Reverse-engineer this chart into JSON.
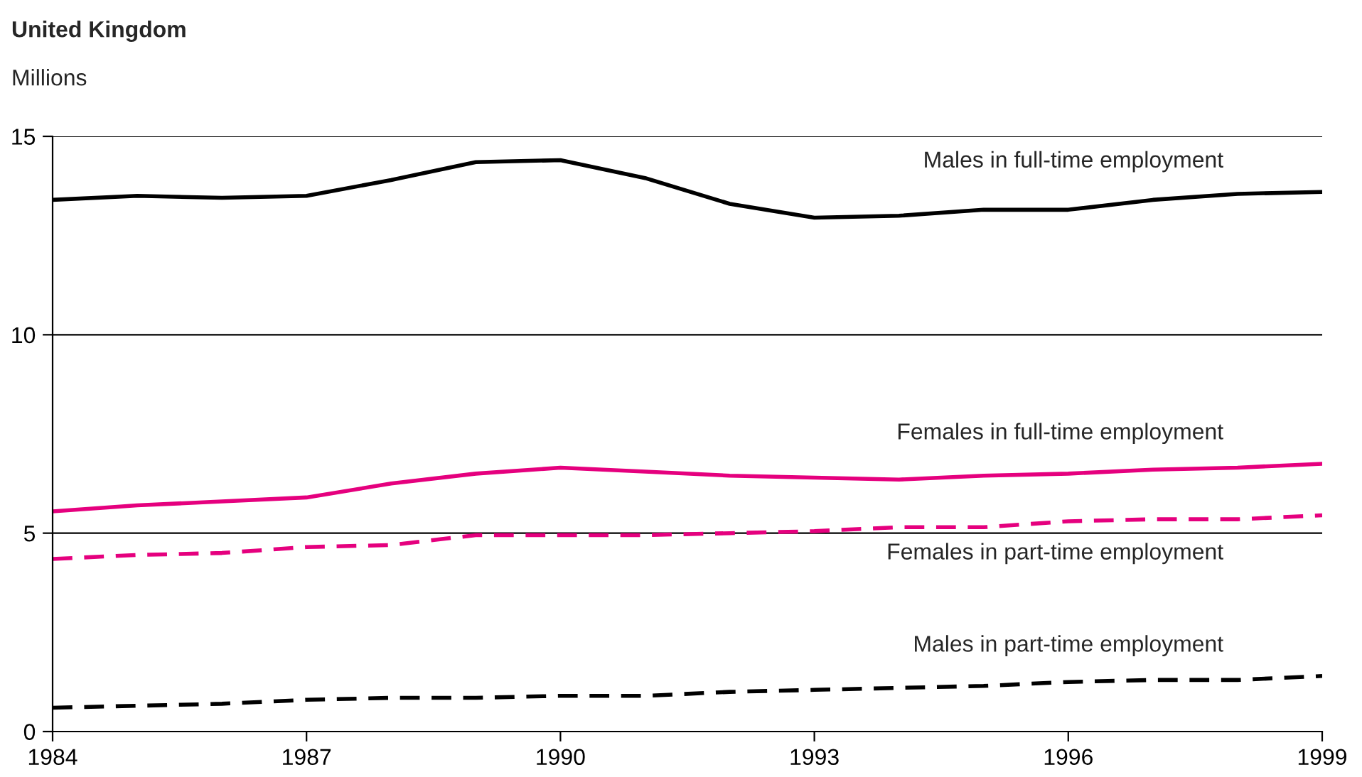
{
  "chart_data": {
    "type": "line",
    "title": "United Kingdom",
    "ylabel": "Millions",
    "x": [
      1984,
      1985,
      1986,
      1987,
      1988,
      1989,
      1990,
      1991,
      1992,
      1993,
      1994,
      1995,
      1996,
      1997,
      1998,
      1999
    ],
    "series": [
      {
        "name": "Males in full-time employment",
        "color": "#000000",
        "line_style": "solid",
        "values": [
          13.4,
          13.5,
          13.45,
          13.5,
          13.9,
          14.35,
          14.4,
          13.95,
          13.3,
          12.95,
          13.0,
          13.15,
          13.15,
          13.4,
          13.55,
          13.6
        ]
      },
      {
        "name": "Females in full-time employment",
        "color": "#e5007e",
        "line_style": "solid",
        "values": [
          5.55,
          5.7,
          5.8,
          5.9,
          6.25,
          6.5,
          6.65,
          6.55,
          6.45,
          6.4,
          6.35,
          6.45,
          6.5,
          6.6,
          6.65,
          6.75
        ]
      },
      {
        "name": "Females in part-time employment",
        "color": "#e5007e",
        "line_style": "dashed",
        "values": [
          4.35,
          4.45,
          4.5,
          4.65,
          4.7,
          4.95,
          4.95,
          4.95,
          5.0,
          5.05,
          5.15,
          5.15,
          5.3,
          5.35,
          5.35,
          5.45
        ]
      },
      {
        "name": "Males in part-time employment",
        "color": "#000000",
        "line_style": "dashed",
        "values": [
          0.6,
          0.65,
          0.7,
          0.8,
          0.85,
          0.85,
          0.9,
          0.9,
          1.0,
          1.05,
          1.1,
          1.15,
          1.25,
          1.3,
          1.3,
          1.4
        ]
      }
    ],
    "xlim": [
      1984,
      1999
    ],
    "xticks": [
      1984,
      1987,
      1990,
      1993,
      1996,
      1999
    ],
    "ylim": [
      0,
      15
    ],
    "yticks": [
      0,
      5,
      10,
      15
    ],
    "grid": "y",
    "legend": false,
    "marker": "none"
  }
}
